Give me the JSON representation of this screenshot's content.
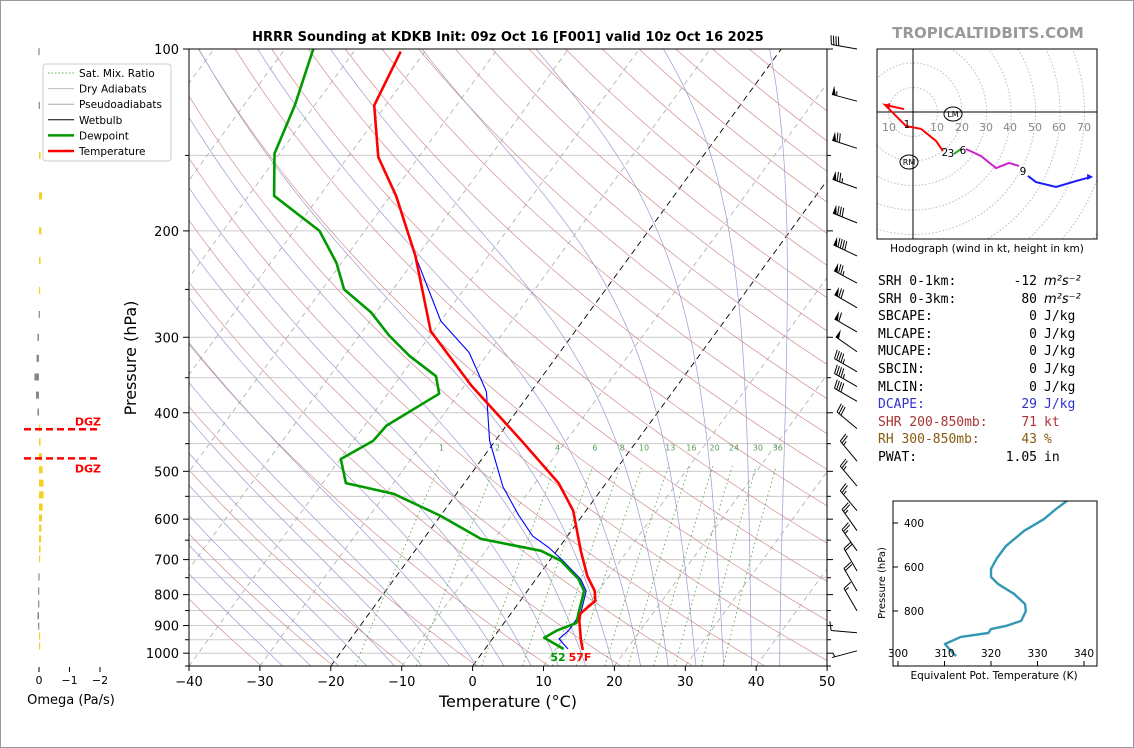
{
  "title": "HRRR Sounding at KDKB Init: 09z Oct 16 [F001] valid 10z Oct 16 2025",
  "watermark": "TROPICALTIDBITS.COM",
  "legend": [
    "Sat. Mix. Ratio",
    "Dry Adiabats",
    "Pseudoadiabats",
    "Wetbulb",
    "Dewpoint",
    "Temperature"
  ],
  "colors": {
    "temperature": "#ff0000",
    "dewpoint": "#009900",
    "wetbulb": "#0000ff",
    "dry_adiabat": "#d09090",
    "moist_adiabat": "#9a9ad0",
    "mixing_ratio": "#55aa55",
    "theta_e": "#3399b3",
    "omega_up": "#f5d020",
    "omega_down": "#888888",
    "dgz": "#ff0000"
  },
  "surface": {
    "dewpoint_label": "52",
    "temperature_label": "57F"
  },
  "stats": [
    {
      "label": "SRH 0-1km:",
      "value": "-12",
      "unit": "m²s⁻²",
      "color": "#000000"
    },
    {
      "label": "SRH 0-3km:",
      "value": "80",
      "unit": "m²s⁻²",
      "color": "#000000"
    },
    {
      "label": "SBCAPE:",
      "value": "0",
      "unit": "J/kg",
      "color": "#000000"
    },
    {
      "label": "MLCAPE:",
      "value": "0",
      "unit": "J/kg",
      "color": "#000000"
    },
    {
      "label": "MUCAPE:",
      "value": "0",
      "unit": "J/kg",
      "color": "#000000"
    },
    {
      "label": "SBCIN:",
      "value": "0",
      "unit": "J/kg",
      "color": "#000000"
    },
    {
      "label": "MLCIN:",
      "value": "0",
      "unit": "J/kg",
      "color": "#000000"
    },
    {
      "label": "DCAPE:",
      "value": "29",
      "unit": "J/kg",
      "color": "#3333cc"
    },
    {
      "label": "SHR 200-850mb:",
      "value": "71",
      "unit": "kt",
      "color": "#aa3333"
    },
    {
      "label": "RH 300-850mb:",
      "value": "43",
      "unit": "%",
      "color": "#8a5a10"
    },
    {
      "label": "PWAT:",
      "value": "1.05",
      "unit": "in",
      "color": "#000000"
    }
  ],
  "chart_data": [
    {
      "id": "skewt",
      "type": "line",
      "xlabel": "Temperature (°C)",
      "ylabel": "Pressure (hPa)",
      "xlim": [
        -40,
        50
      ],
      "ylim": [
        1050,
        100
      ],
      "yscale": "log",
      "xticks": [
        "−40",
        "−30",
        "−20",
        "−10",
        "0",
        "10",
        "20",
        "30",
        "40",
        "50"
      ],
      "yticks": [
        "100",
        "200",
        "300",
        "400",
        "500",
        "600",
        "700",
        "800",
        "900",
        "1000"
      ],
      "mixing_ratio_labels": [
        "1",
        "2",
        "4",
        "6",
        "8",
        "10",
        "13",
        "16",
        "20",
        "24",
        "30",
        "36"
      ],
      "temperature": {
        "p": [
          988,
          954,
          884,
          860,
          819,
          789,
          745,
          677,
          581,
          523,
          445,
          361,
          293,
          220,
          175,
          151,
          124,
          101
        ],
        "T": [
          13.9,
          12.7,
          10.4,
          9.8,
          10.6,
          9.5,
          6.9,
          3.4,
          -1.8,
          -6.7,
          -16.3,
          -29,
          -40.4,
          -50.3,
          -59.2,
          -65.7,
          -71.6,
          -73.4
        ]
      },
      "dewpoint": {
        "p": [
          984,
          943,
          918,
          891,
          858,
          789,
          754,
          703,
          677,
          647,
          593,
          545,
          523,
          477,
          445,
          420,
          372,
          348,
          322,
          298,
          273,
          250,
          226,
          200,
          175,
          149,
          124,
          100
        ],
        "T": [
          11.1,
          7.2,
          8.2,
          10.2,
          9.5,
          8,
          6,
          1.6,
          -2.2,
          -11.9,
          -19.9,
          -28.8,
          -36.7,
          -39.9,
          -37.2,
          -36.9,
          -32.75,
          -35,
          -40.85,
          -45.8,
          -50.7,
          -56.9,
          -60.7,
          -66.4,
          -76.4,
          -80.7,
          -82.8,
          -86
        ]
      },
      "wetbulb": {
        "p": [
          984,
          947,
          918,
          858,
          789,
          754,
          703,
          670,
          640,
          589,
          530,
          445,
          369,
          318,
          282,
          220
        ],
        "T": [
          11.7,
          9.4,
          9.9,
          9.8,
          8.3,
          6.3,
          1.9,
          -1.3,
          -4.9,
          -9.2,
          -14.2,
          -20.8,
          -26.3,
          -32.75,
          -40,
          -50.3
        ]
      },
      "wind_barbs": {
        "p": [
          100,
          122,
          146,
          170,
          194,
          220,
          244,
          268,
          294,
          317,
          342,
          362,
          383,
          425,
          481,
          529,
          581,
          627,
          677,
          731,
          789,
          851,
          925,
          991
        ],
        "speed_kt": [
          40,
          55,
          70,
          75,
          80,
          90,
          75,
          70,
          60,
          50,
          45,
          45,
          40,
          30,
          25,
          25,
          25,
          25,
          25,
          20,
          20,
          15,
          10,
          5
        ],
        "direction_deg": [
          280,
          285,
          288,
          290,
          292,
          295,
          298,
          300,
          300,
          305,
          300,
          300,
          300,
          310,
          320,
          320,
          320,
          325,
          325,
          330,
          330,
          330,
          275,
          255
        ]
      }
    },
    {
      "id": "omega",
      "type": "bar",
      "xlabel": "Omega (Pa/s)",
      "xticks": [
        "0",
        "−1",
        "−2"
      ],
      "xlim": [
        0.2,
        -2.2
      ],
      "p": [
        101,
        124,
        150,
        175,
        200,
        224,
        251,
        275,
        300,
        325,
        349,
        374,
        399,
        424,
        447,
        473,
        497,
        523,
        547,
        573,
        597,
        621,
        647,
        672,
        698,
        748,
        789,
        829,
        867,
        902,
        937,
        973
      ],
      "omega": [
        0.02,
        0.01,
        -0.05,
        -0.1,
        -0.08,
        -0.05,
        -0.03,
        0.01,
        0.05,
        0.08,
        0.15,
        0.1,
        0.05,
        -0.02,
        -0.05,
        -0.1,
        -0.12,
        -0.15,
        -0.15,
        -0.12,
        -0.1,
        -0.08,
        -0.07,
        -0.05,
        -0.03,
        0.02,
        0.03,
        0.03,
        0.05,
        0.03,
        -0.02,
        -0.03
      ],
      "dgz": {
        "label": "DGZ",
        "p_top": 426,
        "p_bottom": 476
      }
    },
    {
      "id": "theta_e",
      "type": "line",
      "xlabel": "Equivalent Pot. Temperature (K)",
      "ylabel": "Pressure (hPa)",
      "xlim": [
        299,
        343
      ],
      "ylim": [
        1050,
        300
      ],
      "xticks": [
        "300",
        "310",
        "320",
        "330",
        "340"
      ],
      "yticks": [
        "400",
        "600",
        "800"
      ],
      "theta_e": [
        336.3,
        334,
        331.4,
        327.1,
        323.2,
        321.3,
        320,
        320,
        321.5,
        325,
        327.3,
        327.5,
        326.5,
        323.2,
        320,
        319.4,
        313.5,
        310.1,
        311.4,
        312.5
      ],
      "p": [
        300,
        336,
        382,
        436,
        505,
        559,
        609,
        645,
        677,
        723,
        768,
        800,
        845,
        868,
        882,
        900,
        918,
        950,
        982,
        1005
      ]
    },
    {
      "id": "hodograph",
      "type": "line",
      "title": "Hodograph (wind in kt, height in km)",
      "ring_labels": [
        "10",
        "10",
        "20",
        "30",
        "40",
        "50",
        "60",
        "70"
      ],
      "height_labels": [
        "1",
        "2",
        "3",
        "6",
        "9"
      ],
      "storm_motion_labels": [
        "LM",
        "RM"
      ],
      "segments": [
        {
          "color": "#ff0000",
          "u": [
            -3.7,
            -11.4,
            -2.9,
            3.3,
            9.4,
            12.2
          ],
          "v": [
            1.2,
            2.9,
            -5.7,
            -6.9,
            -11.8,
            -15.9
          ]
        },
        {
          "color": "#22aa22",
          "u": [
            16.7,
            19.6
          ],
          "v": [
            -17.1,
            -15.1
          ]
        },
        {
          "color": "#cc22cc",
          "u": [
            21.6,
            27.8,
            33.9,
            39.2,
            43.3
          ],
          "v": [
            -15.1,
            -18,
            -22.9,
            -20.8,
            -22
          ]
        },
        {
          "color": "#1a1aff",
          "u": [
            46.9,
            50.2,
            58.4,
            66.5,
            72.7
          ],
          "v": [
            -26.1,
            -28.6,
            -30.6,
            -28.2,
            -26.5
          ]
        }
      ]
    }
  ]
}
